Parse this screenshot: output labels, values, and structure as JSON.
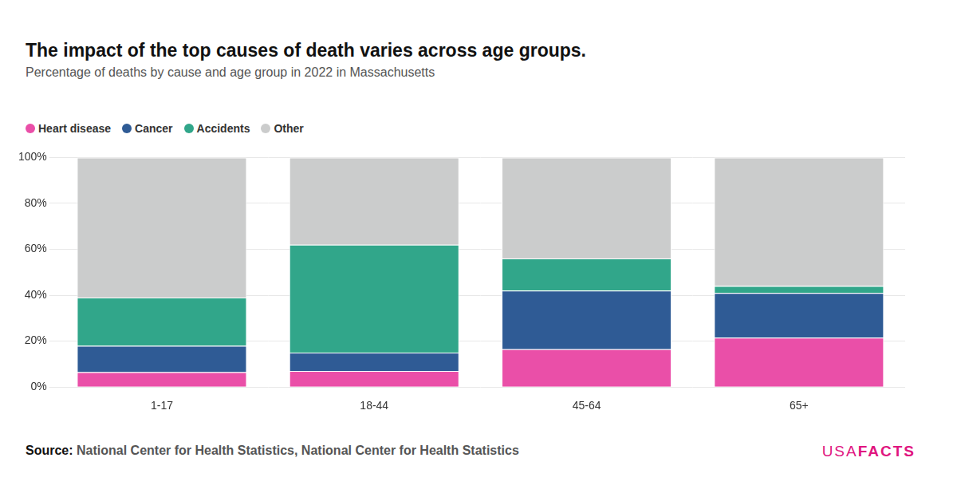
{
  "chart_data": {
    "type": "bar",
    "stacked": true,
    "title": "The impact of the top causes of death varies across age groups.",
    "subtitle": "Percentage of deaths by cause and age group in 2022 in Massachusetts",
    "source_label": "Source:",
    "source": "National Center for Health Statistics, National Center for Health Statistics",
    "logo": [
      "USA",
      "FACTS"
    ],
    "categories": [
      "1-17",
      "18-44",
      "45-64",
      "65+"
    ],
    "series": [
      {
        "name": "Heart disease",
        "color": "#ea4fa8",
        "values": [
          6.5,
          7,
          16.5,
          21.5
        ]
      },
      {
        "name": "Cancer",
        "color": "#2f5b95",
        "values": [
          11.5,
          8,
          25.5,
          19.5
        ]
      },
      {
        "name": "Accidents",
        "color": "#31a68a",
        "values": [
          21,
          47,
          14,
          3
        ]
      },
      {
        "name": "Other",
        "color": "#cbcccc",
        "values": [
          61,
          38,
          44,
          56
        ]
      }
    ],
    "ylim": [
      0,
      100
    ],
    "yticks": [
      {
        "value": 0,
        "label": "0%"
      },
      {
        "value": 20,
        "label": "20%"
      },
      {
        "value": 40,
        "label": "40%"
      },
      {
        "value": 60,
        "label": "60%"
      },
      {
        "value": 80,
        "label": "80%"
      },
      {
        "value": 100,
        "label": "100%"
      }
    ],
    "grid": true,
    "legend": "top-left"
  }
}
